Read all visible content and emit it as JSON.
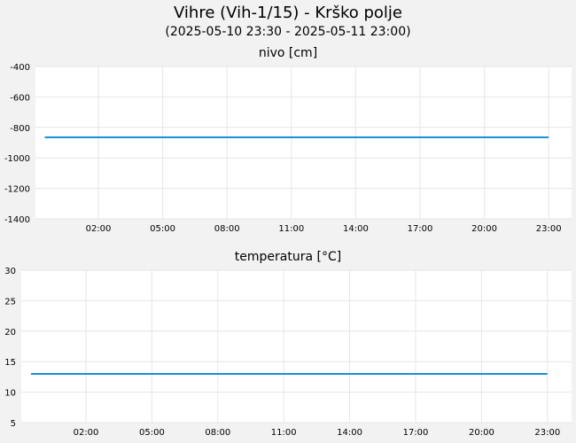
{
  "header": {
    "title": "Vihre (Vih-1/15) - Krško polje",
    "subtitle": "(2025-05-10 23:30 - 2025-05-11 23:00)"
  },
  "colors": {
    "background": "#f2f2f2",
    "plot_background": "#ffffff",
    "grid": "#e6e6e6",
    "series": "#1b8fd8"
  },
  "chart_data": [
    {
      "type": "line",
      "title": "nivo [cm]",
      "xlabel": "",
      "ylabel": "",
      "x_ticks": [
        "02:00",
        "05:00",
        "08:00",
        "11:00",
        "14:00",
        "17:00",
        "20:00",
        "23:00"
      ],
      "y_ticks": [
        -400,
        -600,
        -800,
        -1000,
        -1200,
        -1400
      ],
      "ylim": [
        -1400,
        -400
      ],
      "xlim": [
        "2025-05-10 23:30",
        "2025-05-11 23:00"
      ],
      "grid": true,
      "series": [
        {
          "x": [
            "2025-05-10 23:30",
            "2025-05-11 23:00"
          ],
          "values": [
            -865,
            -865
          ]
        }
      ]
    },
    {
      "type": "line",
      "title": "temperatura [°C]",
      "xlabel": "",
      "ylabel": "",
      "x_ticks": [
        "02:00",
        "05:00",
        "08:00",
        "11:00",
        "14:00",
        "17:00",
        "20:00",
        "23:00"
      ],
      "y_ticks": [
        30,
        25,
        20,
        15,
        10,
        5
      ],
      "ylim": [
        5,
        30
      ],
      "xlim": [
        "2025-05-10 23:00",
        "2025-05-11 23:00"
      ],
      "grid": true,
      "series": [
        {
          "x": [
            "2025-05-10 23:30",
            "2025-05-11 23:00"
          ],
          "values": [
            13,
            13
          ]
        }
      ]
    }
  ]
}
